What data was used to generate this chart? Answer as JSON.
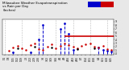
{
  "title": "Milwaukee Weather Evapotranspiration\nvs Rain per Day\n(Inches)",
  "title_fontsize": 3.0,
  "background_color": "#e8e8e8",
  "plot_bg_color": "#ffffff",
  "x_labels": [
    "1/1",
    "1/8",
    "1/15",
    "1/22",
    "1/29",
    "2/5",
    "2/12",
    "2/19",
    "2/26",
    "3/5",
    "3/12",
    "3/19",
    "3/26",
    "4/2",
    "4/9",
    "4/16",
    "4/23",
    "4/30",
    "5/7",
    "5/14",
    "5/21",
    "5/28",
    "6/4",
    "6/11",
    "6/18",
    "6/25"
  ],
  "et_x": [
    1,
    2,
    3,
    4,
    5,
    6,
    7,
    8,
    9,
    10,
    11,
    12,
    13,
    14,
    15,
    16,
    17,
    18,
    19,
    20,
    21,
    22,
    23,
    24,
    25
  ],
  "et_y": [
    0.08,
    0.18,
    0.22,
    0.16,
    0.1,
    0.24,
    0.28,
    0.14,
    0.1,
    0.2,
    0.26,
    0.16,
    0.22,
    0.28,
    0.24,
    0.2,
    0.16,
    0.22,
    0.26,
    0.3,
    0.2,
    0.18,
    0.22,
    0.14,
    0.1
  ],
  "rain_x": [
    2,
    6,
    8,
    9,
    13,
    14,
    15,
    16,
    22,
    23,
    24,
    25
  ],
  "rain_y": [
    0.04,
    0.05,
    0.4,
    0.8,
    0.7,
    0.85,
    0.55,
    0.1,
    0.18,
    0.12,
    0.08,
    0.06
  ],
  "black_x": [
    3,
    7,
    11,
    17,
    21
  ],
  "black_y": [
    0.15,
    0.2,
    0.18,
    0.14,
    0.16
  ],
  "et_color": "#cc0000",
  "rain_color": "#0000cc",
  "black_color": "#000000",
  "hline_y": 0.5,
  "hline_xstart": 14.0,
  "hline_xend": 25.5,
  "hline_color": "#cc0000",
  "legend_blue_color": "#0000cc",
  "legend_red_color": "#cc0000",
  "ylim": [
    -0.02,
    0.95
  ],
  "yticks": [
    0.0,
    0.1,
    0.2,
    0.3,
    0.4,
    0.5,
    0.6,
    0.7,
    0.8,
    0.9
  ],
  "ytick_labels": [
    ".0",
    ".1",
    ".2",
    ".3",
    ".4",
    ".5",
    ".6",
    ".7",
    ".8",
    ".9"
  ],
  "grid_positions": [
    0,
    4,
    8,
    12,
    16,
    20,
    24
  ],
  "grid_color": "#aaaaaa",
  "marker_size": 1.8,
  "rain_marker_size": 2.0,
  "xlim": [
    -0.5,
    25.5
  ]
}
